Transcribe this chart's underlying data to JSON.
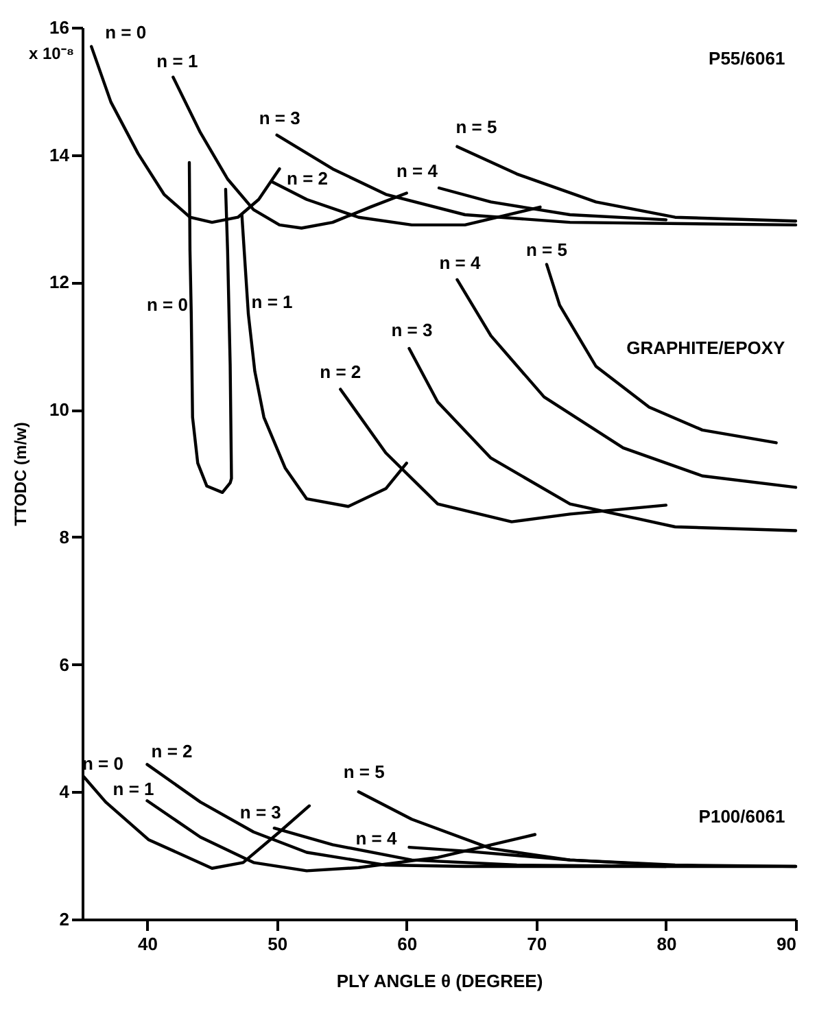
{
  "chart_data": {
    "type": "line",
    "xlabel": "PLY ANGLE θ (DEGREE)",
    "ylabel": "TTODC (m/w)",
    "xlim": [
      35,
      90
    ],
    "ylim": [
      2,
      16
    ],
    "xticks": [
      40,
      50,
      60,
      70,
      80,
      90
    ],
    "yticks": [
      2,
      4,
      6,
      8,
      10,
      12,
      14,
      16
    ],
    "grid": false,
    "marker": "none",
    "line_style": "solid",
    "series": [
      {
        "name": "n = 0",
        "color": "#000000",
        "x": [
          35.7,
          37.2,
          39.3,
          41.3,
          43.3,
          45,
          47,
          48.6,
          50.2
        ],
        "values": [
          15.7,
          14.83,
          14.02,
          13.38,
          13.02,
          12.94,
          13.02,
          13.3,
          13.78
        ]
      },
      {
        "name": "n = 1",
        "color": "#000000",
        "x": [
          42,
          44.1,
          46.2,
          48.2,
          50.2,
          51.9,
          54.3,
          57.2,
          60
        ],
        "values": [
          15.22,
          14.35,
          13.62,
          13.14,
          12.9,
          12.85,
          12.94,
          13.18,
          13.4
        ]
      },
      {
        "name": "n = 2",
        "color": "#000000",
        "x": [
          49.6,
          52.3,
          56.3,
          60.4,
          64.5,
          70.3
        ],
        "values": [
          13.58,
          13.3,
          13.02,
          12.9,
          12.9,
          13.18
        ]
      },
      {
        "name": "n = 3",
        "color": "#000000",
        "x": [
          50,
          54.3,
          58.4,
          64.5,
          72.6,
          90
        ],
        "values": [
          14.31,
          13.78,
          13.38,
          13.06,
          12.94,
          12.9
        ]
      },
      {
        "name": "n = 4",
        "color": "#000000",
        "x": [
          62.5,
          66.5,
          72.6,
          80
        ],
        "values": [
          13.48,
          13.26,
          13.06,
          12.98
        ]
      },
      {
        "name": "n = 5",
        "color": "#000000",
        "x": [
          63.9,
          68.5,
          74.6,
          80.7,
          90
        ],
        "values": [
          14.13,
          13.7,
          13.26,
          13.02,
          12.96
        ]
      },
      {
        "name": "n = 0",
        "color": "#000000",
        "x": [
          43.25,
          43.3,
          43.4,
          43.5,
          43.9,
          44.6,
          45.8,
          46.4,
          46.5,
          46.4,
          46.2,
          46.05
        ],
        "values": [
          13.88,
          12.5,
          11.5,
          9.88,
          9.16,
          8.8,
          8.7,
          8.85,
          8.92,
          10.7,
          12.5,
          13.46
        ]
      },
      {
        "name": "n = 1",
        "color": "#000000",
        "x": [
          47.3,
          47.8,
          48.3,
          49,
          50.65,
          52.3,
          55.5,
          58.4,
          60
        ],
        "values": [
          13.06,
          11.5,
          10.6,
          9.88,
          9.08,
          8.6,
          8.48,
          8.76,
          9.16
        ]
      },
      {
        "name": "n = 2",
        "color": "#000000",
        "x": [
          54.9,
          58.4,
          62.4,
          68.1,
          72.6,
          80
        ],
        "values": [
          10.32,
          9.32,
          8.52,
          8.24,
          8.36,
          8.5
        ]
      },
      {
        "name": "n = 3",
        "color": "#000000",
        "x": [
          60.2,
          62.4,
          66.5,
          72.6,
          80.7,
          90
        ],
        "values": [
          10.96,
          10.12,
          9.24,
          8.52,
          8.16,
          8.1
        ]
      },
      {
        "name": "n = 4",
        "color": "#000000",
        "x": [
          63.9,
          66.5,
          70.6,
          76.7,
          82.8,
          90
        ],
        "values": [
          12.04,
          11.16,
          10.2,
          9.4,
          8.96,
          8.78
        ]
      },
      {
        "name": "n = 5",
        "color": "#000000",
        "x": [
          70.8,
          71.8,
          74.6,
          78.7,
          82.8,
          88.5
        ],
        "values": [
          12.28,
          11.64,
          10.68,
          10.04,
          9.68,
          9.48
        ]
      },
      {
        "name": "n = 0",
        "color": "#000000",
        "x": [
          35.1,
          36.8,
          40.1,
          45,
          47.4,
          50.2,
          52.5
        ],
        "values": [
          4.24,
          3.84,
          3.25,
          2.8,
          2.89,
          3.37,
          3.78
        ]
      },
      {
        "name": "n = 1",
        "color": "#000000",
        "x": [
          40,
          44.1,
          48.2,
          52.3,
          56.3,
          62.4,
          69.9
        ],
        "values": [
          3.86,
          3.29,
          2.89,
          2.76,
          2.81,
          2.97,
          3.33
        ]
      },
      {
        "name": "n = 2",
        "color": "#000000",
        "x": [
          40,
          44.1,
          48.2,
          52.3,
          58.4,
          64.5,
          90
        ],
        "values": [
          4.43,
          3.84,
          3.37,
          3.05,
          2.85,
          2.83,
          2.83
        ]
      },
      {
        "name": "n = 3",
        "color": "#000000",
        "x": [
          49.8,
          54.3,
          60.4,
          68.5,
          80
        ],
        "values": [
          3.43,
          3.17,
          2.93,
          2.85,
          2.83
        ]
      },
      {
        "name": "n = 4",
        "color": "#000000",
        "x": [
          60.2,
          64.5,
          72.6,
          80.7,
          90
        ],
        "values": [
          3.13,
          3.07,
          2.93,
          2.85,
          2.83
        ]
      },
      {
        "name": "n = 5",
        "color": "#000000",
        "x": [
          56.3,
          60.4,
          66.5,
          72.6,
          80
        ],
        "values": [
          4.0,
          3.57,
          3.11,
          2.93,
          2.85
        ]
      }
    ],
    "annotations": [
      "x 10⁻⁸",
      "P55/6061",
      "GRAPHITE/EPOXY",
      "P100/6061"
    ]
  }
}
